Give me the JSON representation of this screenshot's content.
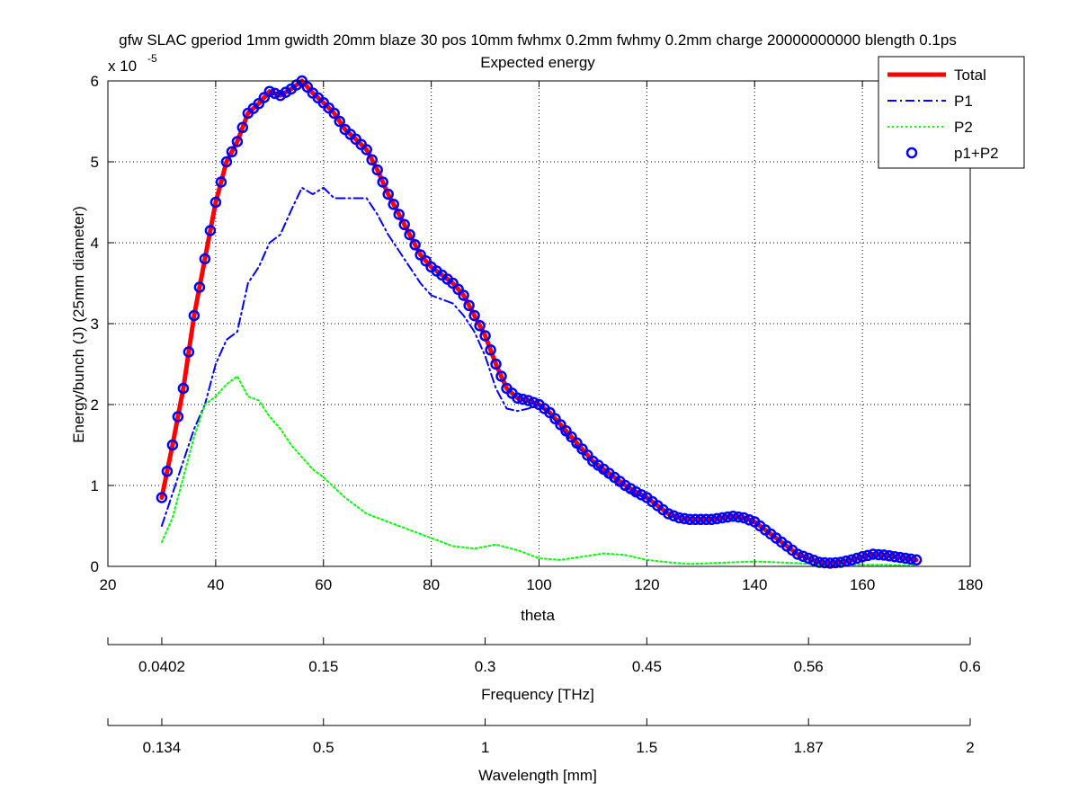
{
  "chart_data": {
    "type": "line",
    "title": "gfw SLAC gperiod 1mm gwidth 20mm blaze 30 pos 10mm fwhmx 0.2mm fwhmy 0.2mm charge 20000000000 blength 0.1ps",
    "subtitle": "Expected energy",
    "xlabel": "theta",
    "ylabel": "Energy/bunch (J) (25mm diameter)",
    "y_exponent_label": "x 10",
    "y_exponent_power": "-5",
    "y_scale_factor": 1e-05,
    "xlim": [
      20,
      180
    ],
    "ylim": [
      0,
      6
    ],
    "x_ticks": [
      "20",
      "40",
      "60",
      "80",
      "100",
      "120",
      "140",
      "160",
      "180"
    ],
    "y_ticks": [
      "0",
      "1",
      "2",
      "3",
      "4",
      "5",
      "6"
    ],
    "grid": true,
    "legend": "top-right",
    "series": [
      {
        "name": "Total",
        "style": "solid",
        "color": "#ff0000",
        "x": [
          30,
          32,
          34,
          36,
          38,
          40,
          42,
          44,
          46,
          48,
          50,
          52,
          54,
          56,
          58,
          60,
          62,
          64,
          66,
          68,
          70,
          72,
          74,
          76,
          78,
          80,
          82,
          84,
          86,
          88,
          90,
          92,
          94,
          96,
          98,
          100,
          102,
          104,
          106,
          108,
          110,
          112,
          114,
          116,
          118,
          120,
          122,
          124,
          126,
          128,
          130,
          132,
          134,
          136,
          138,
          140,
          142,
          144,
          146,
          148,
          150,
          152,
          154,
          156,
          158,
          160,
          162,
          164,
          166,
          168,
          170
        ],
        "values": [
          0.85,
          1.5,
          2.2,
          3.1,
          3.8,
          4.5,
          5.0,
          5.25,
          5.6,
          5.72,
          5.87,
          5.82,
          5.9,
          6.0,
          5.85,
          5.73,
          5.6,
          5.4,
          5.28,
          5.15,
          4.9,
          4.6,
          4.35,
          4.1,
          3.85,
          3.7,
          3.6,
          3.5,
          3.35,
          3.1,
          2.85,
          2.5,
          2.2,
          2.08,
          2.05,
          2.0,
          1.9,
          1.75,
          1.6,
          1.45,
          1.3,
          1.2,
          1.1,
          1.0,
          0.92,
          0.85,
          0.75,
          0.65,
          0.6,
          0.58,
          0.58,
          0.58,
          0.6,
          0.62,
          0.6,
          0.55,
          0.45,
          0.35,
          0.25,
          0.15,
          0.1,
          0.05,
          0.04,
          0.05,
          0.08,
          0.12,
          0.15,
          0.14,
          0.12,
          0.1,
          0.08
        ]
      },
      {
        "name": "P1",
        "style": "dashdot",
        "color": "#0000ff",
        "x": [
          30,
          32,
          34,
          36,
          38,
          40,
          42,
          44,
          46,
          48,
          50,
          52,
          54,
          56,
          58,
          60,
          62,
          64,
          66,
          68,
          70,
          72,
          74,
          76,
          78,
          80,
          82,
          84,
          86,
          88,
          90,
          92,
          94,
          96,
          98,
          100,
          102,
          104,
          106,
          108,
          110,
          112,
          114,
          116,
          118,
          120
        ],
        "values": [
          0.5,
          0.9,
          1.3,
          1.7,
          2.0,
          2.5,
          2.8,
          2.9,
          3.5,
          3.7,
          4.0,
          4.1,
          4.4,
          4.68,
          4.6,
          4.68,
          4.55,
          4.55,
          4.55,
          4.55,
          4.35,
          4.1,
          3.9,
          3.7,
          3.5,
          3.35,
          3.3,
          3.25,
          3.1,
          2.9,
          2.6,
          2.2,
          1.95,
          1.92,
          1.95,
          2.0,
          1.88,
          1.72,
          1.55,
          1.42,
          1.28,
          1.15,
          1.05,
          0.95,
          0.88,
          0.85
        ]
      },
      {
        "name": "P2",
        "style": "dotted",
        "color": "#00ff00",
        "x": [
          30,
          32,
          34,
          36,
          38,
          40,
          42,
          44,
          46,
          48,
          50,
          52,
          54,
          56,
          58,
          60,
          64,
          68,
          72,
          76,
          80,
          84,
          88,
          92,
          96,
          100,
          104,
          108,
          112,
          116,
          120,
          124,
          128,
          132,
          136,
          140,
          144,
          148,
          152,
          156,
          160,
          164,
          168,
          170
        ],
        "values": [
          0.3,
          0.6,
          1.1,
          1.6,
          2.0,
          2.1,
          2.25,
          2.35,
          2.1,
          2.05,
          1.85,
          1.7,
          1.5,
          1.35,
          1.2,
          1.1,
          0.85,
          0.65,
          0.55,
          0.45,
          0.35,
          0.25,
          0.22,
          0.27,
          0.2,
          0.1,
          0.08,
          0.12,
          0.16,
          0.14,
          0.08,
          0.05,
          0.03,
          0.04,
          0.05,
          0.06,
          0.05,
          0.04,
          0.02,
          0.02,
          0.02,
          0.02,
          0.01,
          0.01
        ]
      },
      {
        "name": "p1+P2",
        "style": "circles",
        "color": "#0000ff",
        "x_start": 30,
        "x_end": 170,
        "x_step": 1,
        "follows_series": "Total"
      }
    ],
    "secondary_axes": [
      {
        "label": "Frequency [THz]",
        "tick_labels": [
          "0.0402",
          "0.15",
          "0.3",
          "0.45",
          "0.56",
          "0.6"
        ],
        "tick_theta": [
          30,
          60,
          90,
          120,
          150,
          180
        ]
      },
      {
        "label": "Wavelength [mm]",
        "tick_labels": [
          "0.134",
          "0.5",
          "1",
          "1.5",
          "1.87",
          "2"
        ],
        "tick_theta": [
          30,
          60,
          90,
          120,
          150,
          180
        ]
      }
    ]
  }
}
